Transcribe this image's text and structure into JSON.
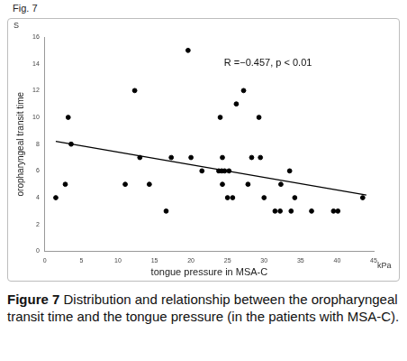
{
  "chart_data": {
    "type": "scatter",
    "title": "Fig. 7",
    "y_unit": "S",
    "x_unit": "kPa",
    "x_label": "tongue pressure in MSA-C",
    "y_label": "oropharyngeal transit time",
    "annotation": "R =−0.457, p < 0.01",
    "caption": {
      "label": "Figure 7",
      "text": "Distribution and relationship between the oropharyngeal transit time and the tongue pressure (in the patients with MSA-C)."
    },
    "xlim": [
      0,
      45
    ],
    "xticks": [
      0,
      5,
      10,
      15,
      20,
      25,
      30,
      35,
      40,
      45
    ],
    "ylim": [
      0,
      16
    ],
    "yticks": [
      0,
      2,
      4,
      6,
      8,
      10,
      12,
      14,
      16
    ],
    "grid": false,
    "series": [
      {
        "type": "scatter",
        "color": "#000000",
        "marker": "circle",
        "x": [
          1.5,
          2.8,
          3.2,
          3.6,
          11,
          12.3,
          13,
          14.3,
          16.6,
          17.3,
          19.6,
          20,
          21.5,
          23.8,
          24.2,
          24.6,
          25.2,
          24,
          24.3,
          24.3,
          25,
          25.7,
          26.2,
          27.2,
          27.8,
          28.3,
          29.3,
          29.5,
          30,
          31.5,
          32.2,
          32.3,
          33.5,
          33.7,
          34.2,
          36.5,
          39.5,
          40.1,
          43.5
        ],
        "values": [
          4,
          5,
          10,
          8,
          5,
          12,
          7,
          5,
          3,
          7,
          15,
          7,
          6,
          6,
          6,
          6,
          6,
          10,
          7,
          5,
          4,
          4,
          11,
          12,
          5,
          7,
          10,
          7,
          4,
          3,
          3,
          5,
          6,
          3,
          4,
          3,
          3,
          3,
          4
        ]
      },
      {
        "type": "line",
        "color": "#000000",
        "line_style": "solid",
        "x": [
          1.5,
          44
        ],
        "values": [
          8.2,
          4.2
        ]
      }
    ]
  }
}
